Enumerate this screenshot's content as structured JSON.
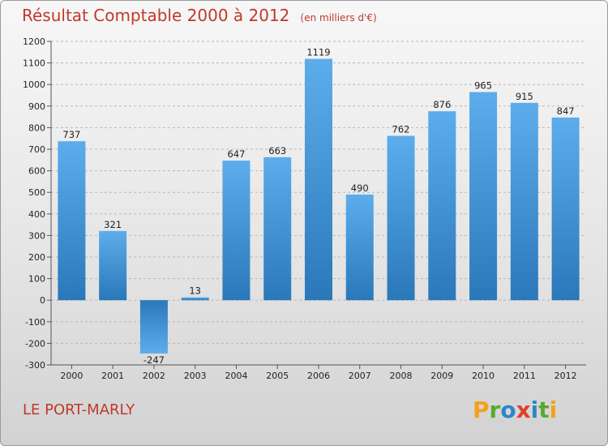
{
  "title": "Résultat Comptable 2000 à 2012",
  "subtitle": "(en milliers d'€)",
  "commune": "LE PORT-MARLY",
  "brand": {
    "letters": [
      "P",
      "r",
      "o",
      "x",
      "i",
      "t",
      "i"
    ],
    "colors": [
      "#f2a21c",
      "#5aa832",
      "#2d86c9",
      "#e03e2d",
      "#2d86c9",
      "#5aa832",
      "#f2a21c"
    ]
  },
  "colors": {
    "title": "#c0392b",
    "bar_top": "#5dadec",
    "bar_bottom": "#2a78b9"
  },
  "chart_data": {
    "type": "bar",
    "title": "Résultat Comptable 2000 à 2012",
    "subtitle": "(en milliers d'€)",
    "xlabel": "",
    "ylabel": "",
    "categories": [
      "2000",
      "2001",
      "2002",
      "2003",
      "2004",
      "2005",
      "2006",
      "2007",
      "2008",
      "2009",
      "2010",
      "2011",
      "2012"
    ],
    "values": [
      737,
      321,
      -247,
      13,
      647,
      663,
      1119,
      490,
      762,
      876,
      965,
      915,
      847
    ],
    "data_labels": [
      "737",
      "321",
      "-247",
      "13",
      "647",
      "663",
      "1119",
      "490",
      "762",
      "876",
      "965",
      "915",
      "847"
    ],
    "ylim": [
      -300,
      1200
    ],
    "yticks": [
      -300,
      -200,
      -100,
      0,
      100,
      200,
      300,
      400,
      500,
      600,
      700,
      800,
      900,
      1000,
      1100,
      1200
    ],
    "ytick_labels": [
      "-300",
      "-200",
      "-100",
      "0",
      "100",
      "200",
      "300",
      "400",
      "500",
      "600",
      "700",
      "800",
      "900",
      "1000",
      "1100",
      "1200"
    ],
    "grid": "horizontal dashed"
  }
}
